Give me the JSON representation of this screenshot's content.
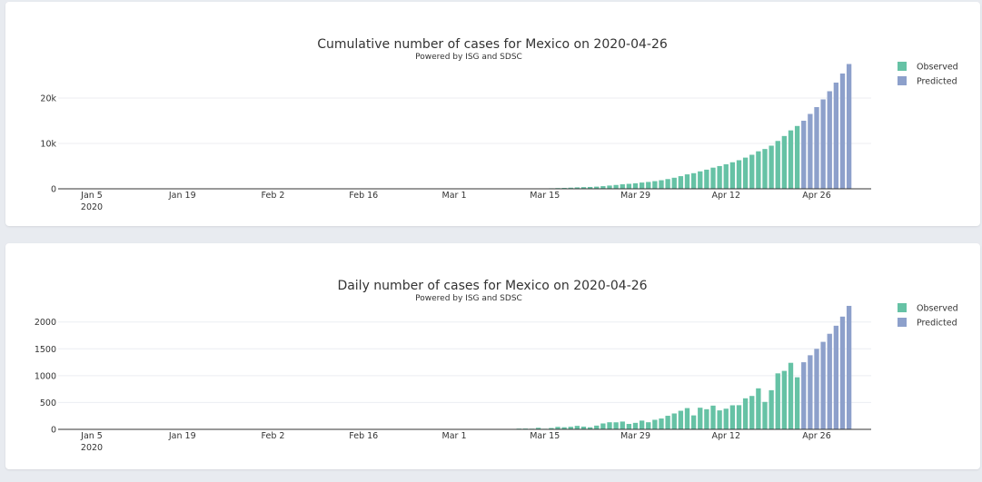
{
  "colors": {
    "observed": "#66c2a5",
    "predicted": "#8da0cb"
  },
  "x_axis": {
    "ticks": [
      {
        "date": "2020-01-05",
        "label": "Jan 5",
        "sublabel": "2020"
      },
      {
        "date": "2020-01-19",
        "label": "Jan 19"
      },
      {
        "date": "2020-02-02",
        "label": "Feb 2"
      },
      {
        "date": "2020-02-16",
        "label": "Feb 16"
      },
      {
        "date": "2020-03-01",
        "label": "Mar 1"
      },
      {
        "date": "2020-03-15",
        "label": "Mar 15"
      },
      {
        "date": "2020-03-29",
        "label": "Mar 29"
      },
      {
        "date": "2020-04-12",
        "label": "Apr 12"
      },
      {
        "date": "2020-04-26",
        "label": "Apr 26"
      }
    ]
  },
  "chart_data": [
    {
      "type": "bar",
      "title": "Cumulative number of cases for Mexico on 2020-04-26",
      "subtitle": "Powered by ISG and SDSC",
      "xlabel": "",
      "ylabel": "",
      "ylim": [
        0,
        28000
      ],
      "yticks": [
        {
          "value": 0,
          "label": "0"
        },
        {
          "value": 10000,
          "label": "10k"
        },
        {
          "value": 20000,
          "label": "20k"
        }
      ],
      "grid": true,
      "legend_position": "top-right",
      "series": [
        {
          "name": "Observed",
          "start_date": "2020-02-28",
          "values": [
            1,
            4,
            5,
            5,
            5,
            5,
            6,
            7,
            7,
            7,
            11,
            12,
            26,
            41,
            53,
            82,
            93,
            118,
            164,
            203,
            251,
            316,
            367,
            405,
            475,
            585,
            717,
            848,
            993,
            1094,
            1215,
            1378,
            1510,
            1688,
            1890,
            2143,
            2439,
            2785,
            3181,
            3441,
            3844,
            4219,
            4661,
            5014,
            5399,
            5847,
            6297,
            6875,
            7497,
            8261,
            8772,
            9501,
            10544,
            11633,
            12872,
            13842
          ]
        },
        {
          "name": "Predicted",
          "start_date": "2020-04-24",
          "values": [
            15000,
            16500,
            18000,
            19700,
            21500,
            23400,
            25400,
            27500
          ]
        }
      ]
    },
    {
      "type": "bar",
      "title": "Daily number of cases for Mexico on 2020-04-26",
      "subtitle": "Powered by ISG and SDSC",
      "xlabel": "",
      "ylabel": "",
      "ylim": [
        0,
        2350
      ],
      "yticks": [
        {
          "value": 0,
          "label": "0"
        },
        {
          "value": 500,
          "label": "500"
        },
        {
          "value": 1000,
          "label": "1000"
        },
        {
          "value": 1500,
          "label": "1500"
        },
        {
          "value": 2000,
          "label": "2000"
        }
      ],
      "grid": true,
      "legend_position": "top-right",
      "series": [
        {
          "name": "Observed",
          "start_date": "2020-02-28",
          "values": [
            1,
            3,
            1,
            0,
            0,
            0,
            1,
            1,
            0,
            0,
            4,
            1,
            14,
            15,
            12,
            29,
            11,
            25,
            46,
            39,
            48,
            65,
            51,
            38,
            70,
            110,
            132,
            131,
            145,
            101,
            121,
            163,
            132,
            178,
            202,
            253,
            296,
            346,
            396,
            260,
            403,
            375,
            442,
            353,
            385,
            448,
            450,
            578,
            622,
            764,
            511,
            729,
            1043,
            1089,
            1239,
            970
          ]
        },
        {
          "name": "Predicted",
          "start_date": "2020-04-24",
          "values": [
            1250,
            1380,
            1500,
            1630,
            1780,
            1930,
            2100,
            2300
          ]
        }
      ]
    }
  ]
}
